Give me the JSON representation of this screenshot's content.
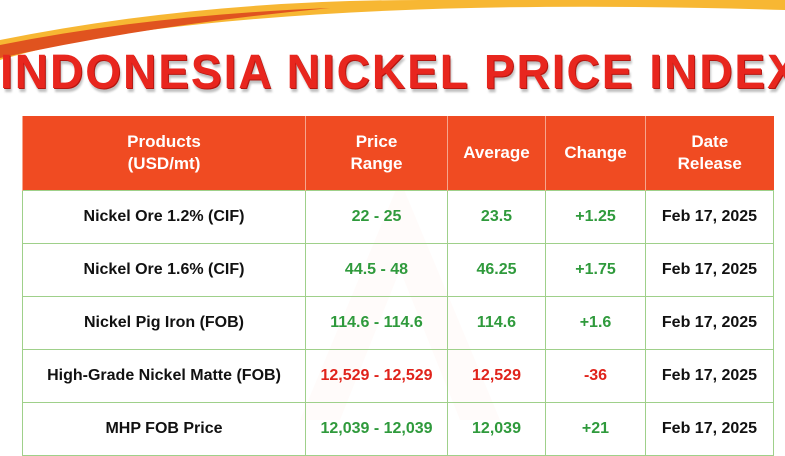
{
  "title": "INDONESIA NICKEL PRICE INDEX",
  "table": {
    "header": [
      [
        "Products",
        "(USD/mt)"
      ],
      [
        "Price",
        "Range"
      ],
      [
        "Average"
      ],
      [
        "Change"
      ],
      [
        "Date",
        "Release"
      ]
    ],
    "rows": [
      {
        "color": "#2f9a3c",
        "cells": [
          "Nickel Ore 1.2% (CIF)",
          "22 - 25",
          "23.5",
          "+1.25",
          "Feb 17, 2025"
        ]
      },
      {
        "color": "#2f9a3c",
        "cells": [
          "Nickel Ore 1.6% (CIF)",
          "44.5 - 48",
          "46.25",
          "+1.75",
          "Feb 17, 2025"
        ]
      },
      {
        "color": "#2f9a3c",
        "cells": [
          "Nickel Pig Iron (FOB)",
          "114.6 - 114.6",
          "114.6",
          "+1.6",
          "Feb 17, 2025"
        ]
      },
      {
        "color": "#e0231b",
        "cells": [
          "High-Grade Nickel Matte (FOB)",
          "12,529 - 12,529",
          "12,529",
          "-36",
          "Feb 17, 2025"
        ]
      },
      {
        "color": "#2f9a3c",
        "cells": [
          "MHP FOB Price",
          "12,039 - 12,039",
          "12,039",
          "+21",
          "Feb 17, 2025"
        ]
      }
    ]
  }
}
